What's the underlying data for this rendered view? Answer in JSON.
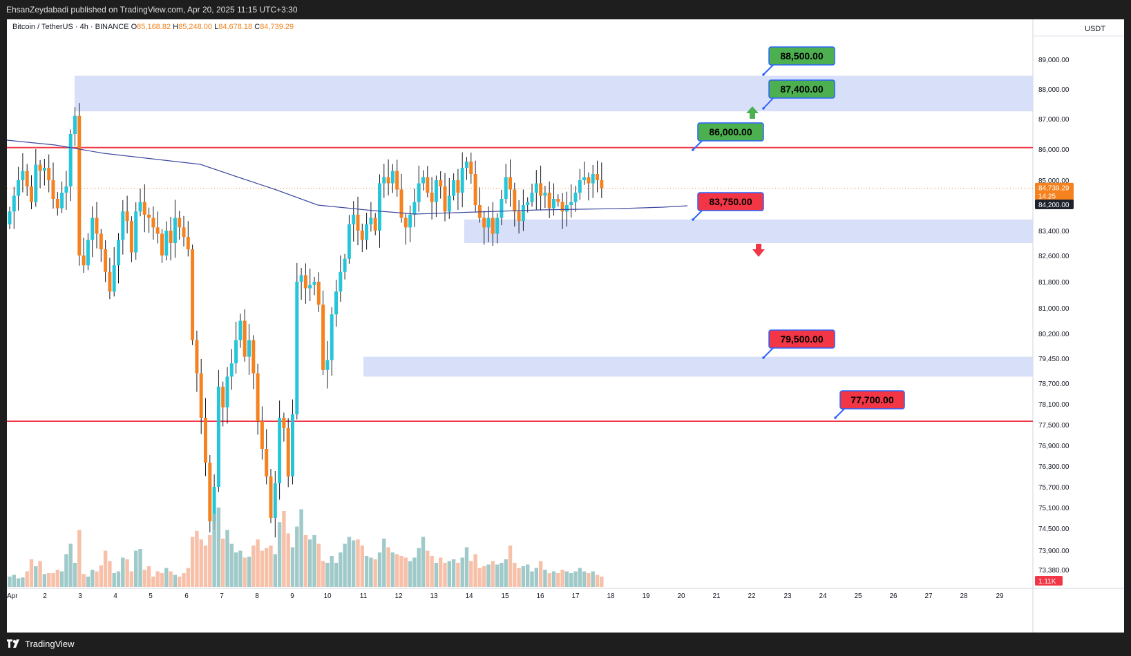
{
  "header": {
    "publisher_line": "EhsanZeydabadi published on TradingView.com, Apr 20, 2025 11:15 UTC+3:30"
  },
  "legend": {
    "symbol": "Bitcoin / TetherUS · 4h · BINANCE",
    "open_label": "O",
    "open": "85,168.82",
    "high_label": "H",
    "high": "85,248.00",
    "low_label": "L",
    "low": "84,678.18",
    "close_label": "C",
    "close": "84,739.29"
  },
  "currency": "USDT",
  "price_axis": [
    "89,000.00",
    "88,000.00",
    "87,000.00",
    "86,000.00",
    "85,000.00",
    "84,200.00",
    "83,400.00",
    "82,600.00",
    "81,800.00",
    "81,000.00",
    "80,200.00",
    "79,450.00",
    "78,700.00",
    "78,100.00",
    "77,500.00",
    "76,900.00",
    "76,300.00",
    "75,700.00",
    "75,100.00",
    "74,500.00",
    "73,900.00",
    "73,380.00"
  ],
  "current_price": {
    "value": "84,739.29",
    "countdown": "14:25"
  },
  "volume_badge": "1.11K",
  "date_axis": [
    "Apr",
    "2",
    "3",
    "4",
    "5",
    "6",
    "7",
    "8",
    "9",
    "10",
    "11",
    "12",
    "13",
    "14",
    "15",
    "16",
    "17",
    "18",
    "19",
    "20",
    "21",
    "22",
    "23",
    "24",
    "25",
    "26",
    "27",
    "28",
    "29"
  ],
  "levels": [
    {
      "label": "88,500.00",
      "kind": "target"
    },
    {
      "label": "87,400.00",
      "kind": "target"
    },
    {
      "label": "86,000.00",
      "kind": "target"
    },
    {
      "label": "83,750.00",
      "kind": "stop"
    },
    {
      "label": "79,500.00",
      "kind": "stop"
    },
    {
      "label": "77,700.00",
      "kind": "stop"
    }
  ],
  "colors": {
    "bull": "#26c6da",
    "bear": "#f5821f",
    "target_fill": "#4caf50",
    "stop_fill": "#f23645",
    "zone": "#d4dcf7",
    "level_line": "#f23645",
    "ma": "#3d4a9e"
  },
  "footer": {
    "brand": "TradingView"
  }
}
